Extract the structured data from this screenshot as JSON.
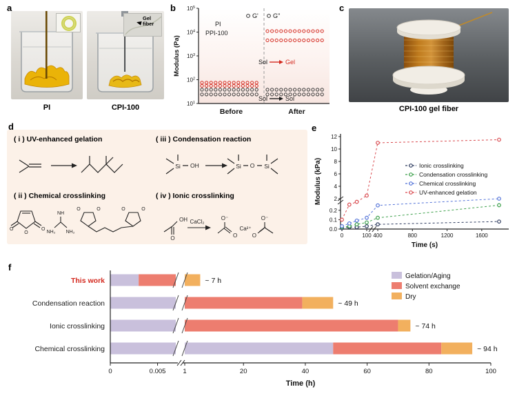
{
  "panels": {
    "a": {
      "label": "a",
      "captions": {
        "left": "PI",
        "right": "CPI-100"
      },
      "inset_annotation": "Gel fiber"
    },
    "b": {
      "label": "b"
    },
    "c": {
      "label": "c",
      "caption": "CPI-100 gel fiber"
    },
    "d": {
      "label": "d",
      "schemes": [
        {
          "num": "( i )",
          "title": "UV-enhanced gelation"
        },
        {
          "num": "( ii )",
          "title": "Chemical crosslinking"
        },
        {
          "num": "( iii )",
          "title": "Condensation reaction"
        },
        {
          "num": "( iv )",
          "title": "Ionic crosslinking"
        }
      ],
      "chem_labels": {
        "oh": "OH",
        "si": "Si",
        "o": "O",
        "o_minus": "O⁻",
        "nh": "NH",
        "nh2": "NH₂",
        "cacl2": "CaCl₂",
        "ca2": "Ca²⁺"
      }
    },
    "e": {
      "label": "e"
    },
    "f": {
      "label": "f"
    }
  },
  "chart_data": [
    {
      "id": "b",
      "type": "scatter",
      "ylabel": "Modulus (Pa)",
      "yscale": "log",
      "ylim": [
        10,
        100000
      ],
      "x_categories": [
        "Before",
        "After"
      ],
      "legend": [
        "G'",
        "G''"
      ],
      "series_labels": [
        {
          "text": "PI",
          "color": "#1a1a1a"
        },
        {
          "text": "PPI-100",
          "color": "#1a1a1a"
        }
      ],
      "series": [
        {
          "name": "PPI-100 G'",
          "color": "#d42a20",
          "before": 75,
          "after": 11000
        },
        {
          "name": "PPI-100 G''",
          "color": "#d42a20",
          "before": 55,
          "after": 4500
        },
        {
          "name": "PI G'",
          "color": "#3a3a3a",
          "before": 38,
          "after": 38
        },
        {
          "name": "PI G''",
          "color": "#3a3a3a",
          "before": 24,
          "after": 24
        }
      ],
      "annotations": [
        {
          "from": "Sol",
          "to": "Gel",
          "color": "#d42a20"
        },
        {
          "from": "Sol",
          "to": "Sol",
          "color": "#1a1a1a"
        }
      ]
    },
    {
      "id": "e",
      "type": "scatter-line",
      "xlabel": "Time (s)",
      "ylabel": "Modulus (kPa)",
      "y_axis_break": [
        0.25,
        2
      ],
      "y_bottom_ticks": [
        "0.0",
        "0.1",
        "0.2"
      ],
      "y_top_ticks": [
        2,
        4,
        6,
        8,
        10,
        12
      ],
      "x_left_ticks": [
        0,
        100
      ],
      "x_right_ticks": [
        400,
        800,
        1200,
        1600
      ],
      "series": [
        {
          "name": "Ionic crosslinking",
          "color": "#2c3a5e",
          "x": [
            0,
            30,
            60,
            100,
            400,
            1800
          ],
          "y": [
            0.01,
            0.02,
            0.02,
            0.03,
            0.05,
            0.08
          ]
        },
        {
          "name": "Condensation crosslinking",
          "color": "#3da04b",
          "x": [
            0,
            30,
            60,
            100,
            400,
            1800
          ],
          "y": [
            0.02,
            0.03,
            0.05,
            0.07,
            0.12,
            0.35
          ]
        },
        {
          "name": "Chemical crosslinking",
          "color": "#5272d8",
          "x": [
            0,
            30,
            60,
            100,
            400,
            1800
          ],
          "y": [
            0.03,
            0.06,
            0.09,
            0.12,
            0.3,
            2.0
          ]
        },
        {
          "name": "UV-enhanced gelation",
          "color": "#d9494e",
          "x": [
            0,
            30,
            60,
            100,
            400,
            1800
          ],
          "y": [
            0.1,
            0.5,
            1.2,
            2.5,
            11.0,
            11.5
          ]
        }
      ]
    },
    {
      "id": "f",
      "type": "stacked-bar-horizontal",
      "xlabel": "Time (h)",
      "x_left_ticks": [
        0,
        0.005
      ],
      "x_right_ticks": [
        1,
        20,
        40,
        60,
        80,
        100
      ],
      "legend": [
        {
          "key": "gelation",
          "label": "Gelation/Aging",
          "color": "#c9c0dc"
        },
        {
          "key": "solvent",
          "label": "Solvent exchange",
          "color": "#ed7d6f"
        },
        {
          "key": "dry",
          "label": "Dry",
          "color": "#f2b05e"
        }
      ],
      "bars": [
        {
          "category": "This work",
          "category_color": "#d42a20",
          "bold": true,
          "total_label": "~ 7 h",
          "segments": [
            {
              "key": "gelation",
              "from": 0,
              "to": 0.003
            },
            {
              "key": "solvent",
              "from": 0.003,
              "to": 0.007
            },
            {
              "key": "dry",
              "from": 1,
              "to": 6
            }
          ]
        },
        {
          "category": "Condensation reaction",
          "category_color": "#1a1a1a",
          "bold": false,
          "total_label": "~ 49 h",
          "segments": [
            {
              "key": "gelation",
              "from": 0,
              "to": 1
            },
            {
              "key": "solvent",
              "from": 1,
              "to": 39
            },
            {
              "key": "dry",
              "from": 39,
              "to": 49
            }
          ]
        },
        {
          "category": "Ionic crosslinking",
          "category_color": "#1a1a1a",
          "bold": false,
          "total_label": "~ 74 h",
          "segments": [
            {
              "key": "gelation",
              "from": 0,
              "to": 1
            },
            {
              "key": "solvent",
              "from": 1,
              "to": 70
            },
            {
              "key": "dry",
              "from": 70,
              "to": 74
            }
          ]
        },
        {
          "category": "Chemical crosslinking",
          "category_color": "#1a1a1a",
          "bold": false,
          "total_label": "~ 94 h",
          "segments": [
            {
              "key": "gelation",
              "from": 0,
              "to": 49
            },
            {
              "key": "solvent",
              "from": 49,
              "to": 84
            },
            {
              "key": "dry",
              "from": 84,
              "to": 94
            }
          ]
        }
      ]
    }
  ]
}
